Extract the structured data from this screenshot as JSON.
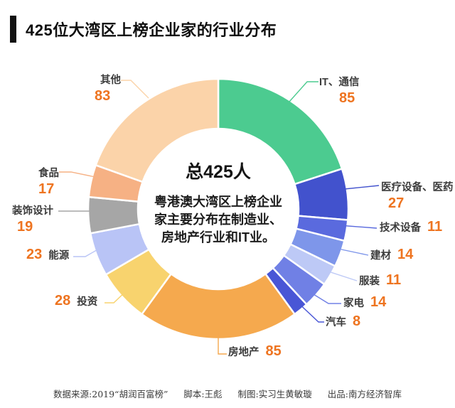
{
  "title": {
    "text": "425位大湾区上榜企业家的行业分布"
  },
  "chart_data": {
    "type": "pie",
    "subtype": "donut",
    "title": "425位大湾区上榜企业家的行业分布",
    "total": 425,
    "center_label": "总425人",
    "center_note_lines": [
      "粤港澳大湾区上榜企业",
      "家主要分布在制造业、",
      "房地产行业和IT业。"
    ],
    "start_angle_deg": 0,
    "direction": "clockwise",
    "segments": [
      {
        "label": "IT、通信",
        "value": 85,
        "color": "#4ccb90"
      },
      {
        "label": "医疗设备、医药",
        "value": 27,
        "color": "#4252cd"
      },
      {
        "label": "技术设备",
        "value": 11,
        "color": "#5a6ade"
      },
      {
        "label": "建材",
        "value": 14,
        "color": "#7e96ea"
      },
      {
        "label": "服装",
        "value": 11,
        "color": "#bdc9f6"
      },
      {
        "label": "家电",
        "value": 14,
        "color": "#7080e5"
      },
      {
        "label": "汽车",
        "value": 8,
        "color": "#4956d6"
      },
      {
        "label": "房地产",
        "value": 85,
        "color": "#f5a94e"
      },
      {
        "label": "投资",
        "value": 28,
        "color": "#f8d36e"
      },
      {
        "label": "能源",
        "value": 23,
        "color": "#b9c4f6"
      },
      {
        "label": "装饰设计",
        "value": 19,
        "color": "#a6a6a6"
      },
      {
        "label": "食品",
        "value": 17,
        "color": "#f6b184"
      },
      {
        "label": "其他",
        "value": 83,
        "color": "#fbd3a9"
      }
    ]
  },
  "colors": {
    "value_number": "#ee7420",
    "label_text": "#3c3c3c",
    "title_bar": "#111111"
  },
  "footer": {
    "items": [
      "数据来源:2019“胡润百富榜”",
      "脚本:王彪",
      "制图:实习生黄敏璇",
      "出品:南方经济智库"
    ]
  }
}
